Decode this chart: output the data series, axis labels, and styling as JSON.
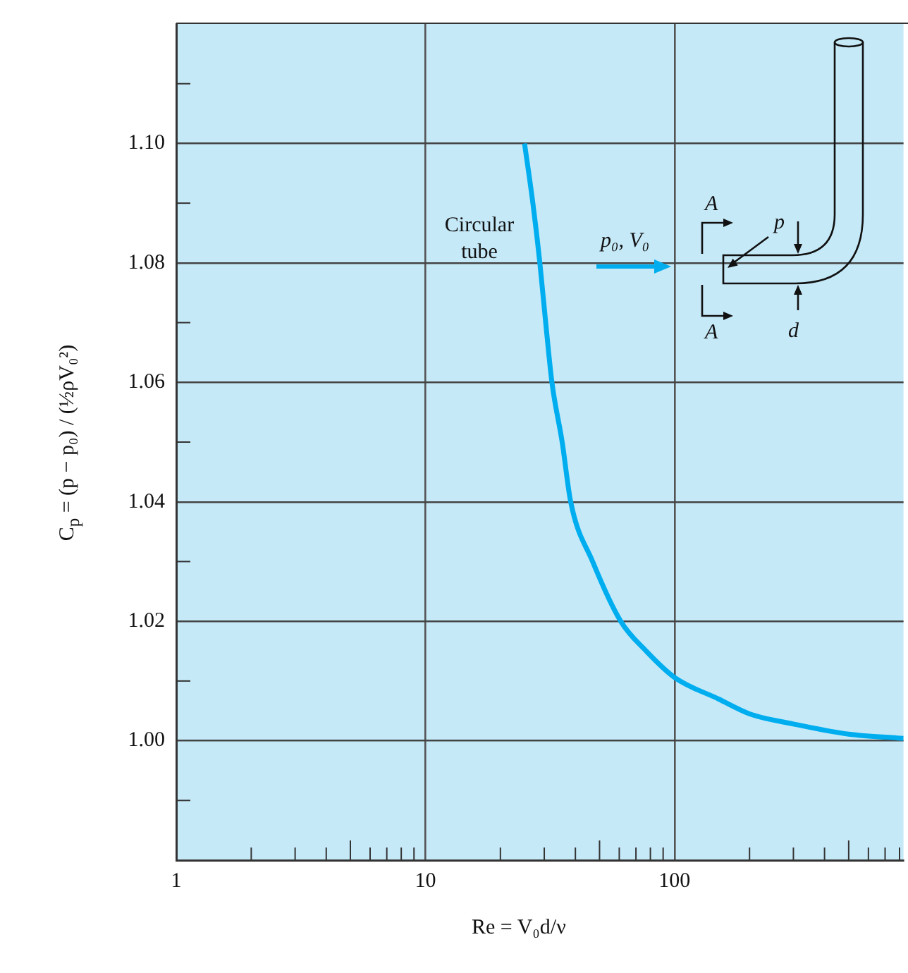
{
  "chart_data": {
    "type": "line",
    "xlabel": "Re = V₀d/ν",
    "ylabel": "C$_{p}$ = (p − p₀) / (½ρV₀²)",
    "x": [
      25,
      27,
      28.8,
      30.4,
      32.2,
      35.4,
      38.3,
      46.9,
      60.8,
      77,
      100,
      150,
      200,
      300,
      500,
      830
    ],
    "series": [
      {
        "color": "#00aeef",
        "values": [
          1.1,
          1.09,
          1.08,
          1.07,
          1.06,
          1.05,
          1.04,
          1.03,
          1.02,
          1.015,
          1.0106,
          1.007,
          1.0045,
          1.0028,
          1.0011,
          1.0004
        ]
      }
    ],
    "xlim": [
      1,
      830
    ],
    "ylim": [
      0.98,
      1.12
    ],
    "xticks": [
      1,
      {
        "value": 2,
        "label": null
      },
      {
        "value": 3,
        "label": null
      },
      {
        "value": 4,
        "label": null
      },
      {
        "value": 5,
        "label": null
      },
      {
        "value": 6,
        "label": null
      },
      {
        "value": 7,
        "label": null
      },
      {
        "value": 8,
        "label": null
      },
      {
        "value": 9,
        "label": null
      },
      10,
      {
        "value": 20,
        "label": null
      },
      {
        "value": 30,
        "label": null
      },
      {
        "value": 40,
        "label": null
      },
      {
        "value": 50,
        "label": null
      },
      {
        "value": 60,
        "label": null
      },
      {
        "value": 70,
        "label": null
      },
      {
        "value": 80,
        "label": null
      },
      {
        "value": 90,
        "label": null
      },
      100,
      {
        "value": 200,
        "label": null
      },
      {
        "value": 300,
        "label": null
      },
      {
        "value": 400,
        "label": null
      },
      {
        "value": 500,
        "label": null
      },
      {
        "value": 600,
        "label": null
      },
      {
        "value": 700,
        "label": null
      },
      {
        "value": 800,
        "label": null
      }
    ],
    "yticks": [
      {
        "value": 0.99,
        "label": null
      },
      {
        "value": 1.0,
        "label": "1.00"
      },
      {
        "value": 1.01,
        "label": null
      },
      {
        "value": 1.02,
        "label": "1.02"
      },
      {
        "value": 1.03,
        "label": null
      },
      {
        "value": 1.04,
        "label": "1.04"
      },
      {
        "value": 1.05,
        "label": null
      },
      {
        "value": 1.06,
        "label": "1.06"
      },
      {
        "value": 1.07,
        "label": null
      },
      {
        "value": 1.08,
        "label": "1.08"
      },
      {
        "value": 1.09,
        "label": null
      },
      {
        "value": 1.1,
        "label": "1.10"
      },
      {
        "value": 1.11,
        "label": null
      }
    ],
    "log": "x",
    "grid": true,
    "marker": "none",
    "annotations": [
      "Circular tube",
      "p₀, V₀",
      "A",
      "A",
      "p",
      "d"
    ]
  }
}
